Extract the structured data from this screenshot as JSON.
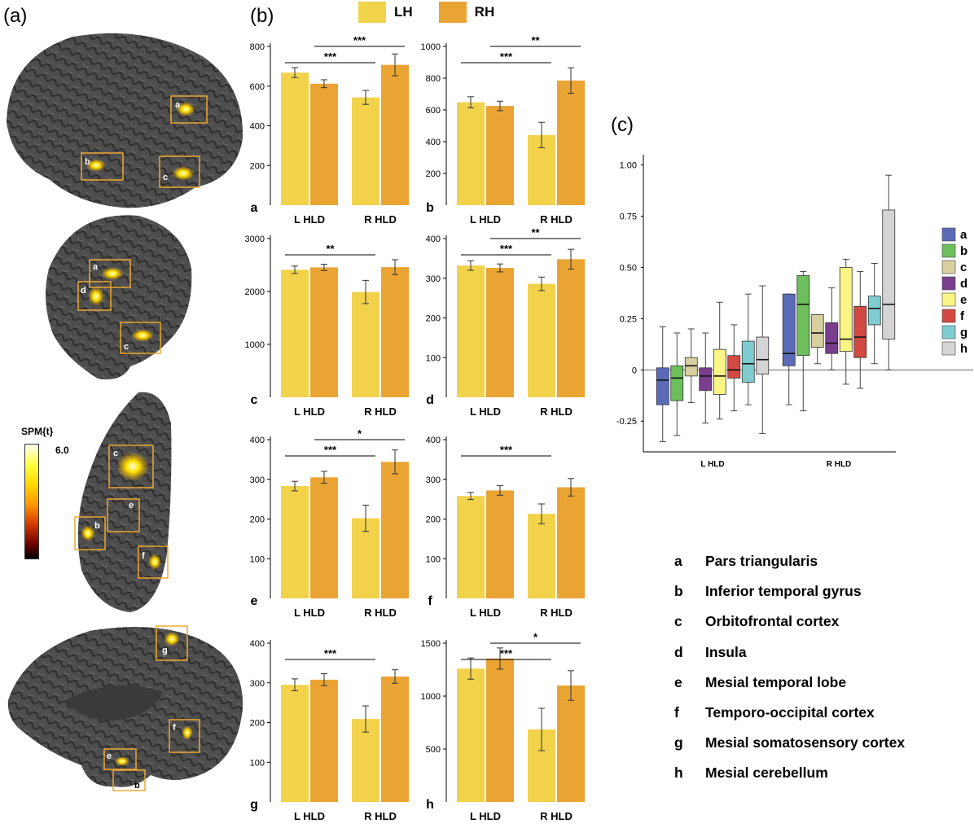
{
  "panel_labels": {
    "a": "(a)",
    "b": "(b)",
    "c": "(c)"
  },
  "colors": {
    "LH": "#f2d24a",
    "RH": "#e9a434",
    "brain_surface": "#4a4a4a",
    "roi_box": "#f0a830"
  },
  "legend": [
    {
      "label": "LH",
      "color": "#f2d24a"
    },
    {
      "label": "RH",
      "color": "#e9a434"
    }
  ],
  "colorbar": {
    "title": "SPM{t}",
    "max_label": "6.0"
  },
  "brain_views": [
    {
      "view": "lateral",
      "rois": [
        "a",
        "b",
        "c"
      ]
    },
    {
      "view": "lateral-tilted",
      "rois": [
        "a",
        "d",
        "c"
      ]
    },
    {
      "view": "ventral",
      "rois": [
        "c",
        "e",
        "b",
        "f"
      ]
    },
    {
      "view": "mesial",
      "rois": [
        "g",
        "f",
        "e",
        "b"
      ]
    }
  ],
  "chart_data": [
    {
      "panel": "a",
      "type": "bar",
      "categories": [
        "L HLD",
        "R HLD"
      ],
      "series": [
        {
          "name": "LH",
          "values": [
            668,
            543
          ],
          "errors": [
            25,
            35
          ]
        },
        {
          "name": "RH",
          "values": [
            612,
            707
          ],
          "errors": [
            20,
            55
          ]
        }
      ],
      "ylim": [
        0,
        800
      ],
      "yticks": [
        200,
        400,
        600,
        800
      ],
      "sig": [
        {
          "label": "***",
          "from": 0,
          "to": 1,
          "level": 1
        },
        {
          "label": "***",
          "from": 0.5,
          "to": 1.5,
          "level": 2
        }
      ]
    },
    {
      "panel": "b",
      "type": "bar",
      "categories": [
        "L HLD",
        "R HLD"
      ],
      "series": [
        {
          "name": "LH",
          "values": [
            648,
            442
          ],
          "errors": [
            35,
            80
          ]
        },
        {
          "name": "RH",
          "values": [
            625,
            785
          ],
          "errors": [
            30,
            80
          ]
        }
      ],
      "ylim": [
        0,
        1000
      ],
      "yticks": [
        200,
        400,
        600,
        800,
        1000
      ],
      "sig": [
        {
          "label": "***",
          "from": 0,
          "to": 1,
          "level": 1
        },
        {
          "label": "**",
          "from": 0.5,
          "to": 1.5,
          "level": 2
        }
      ]
    },
    {
      "panel": "c",
      "type": "bar",
      "categories": [
        "L HLD",
        "R HLD"
      ],
      "series": [
        {
          "name": "LH",
          "values": [
            2410,
            1990
          ],
          "errors": [
            70,
            220
          ]
        },
        {
          "name": "RH",
          "values": [
            2455,
            2460
          ],
          "errors": [
            60,
            140
          ]
        }
      ],
      "ylim": [
        0,
        3000
      ],
      "yticks": [
        1000,
        2000,
        3000
      ],
      "sig": [
        {
          "label": "**",
          "from": 0,
          "to": 1,
          "level": 1
        }
      ]
    },
    {
      "panel": "d",
      "type": "bar",
      "categories": [
        "L HLD",
        "R HLD"
      ],
      "series": [
        {
          "name": "LH",
          "values": [
            332,
            286
          ],
          "errors": [
            12,
            17
          ]
        },
        {
          "name": "RH",
          "values": [
            326,
            348
          ],
          "errors": [
            10,
            25
          ]
        }
      ],
      "ylim": [
        0,
        400
      ],
      "yticks": [
        100,
        200,
        300,
        400
      ],
      "sig": [
        {
          "label": "***",
          "from": 0,
          "to": 1,
          "level": 1
        },
        {
          "label": "**",
          "from": 0.5,
          "to": 1.5,
          "level": 2
        }
      ]
    },
    {
      "panel": "e",
      "type": "bar",
      "categories": [
        "L HLD",
        "R HLD"
      ],
      "series": [
        {
          "name": "LH",
          "values": [
            283,
            202
          ],
          "errors": [
            12,
            33
          ]
        },
        {
          "name": "RH",
          "values": [
            305,
            344
          ],
          "errors": [
            15,
            30
          ]
        }
      ],
      "ylim": [
        0,
        400
      ],
      "yticks": [
        100,
        200,
        300,
        400
      ],
      "sig": [
        {
          "label": "***",
          "from": 0,
          "to": 1,
          "level": 1
        },
        {
          "label": "*",
          "from": 0.5,
          "to": 1.5,
          "level": 2
        }
      ]
    },
    {
      "panel": "f",
      "type": "bar",
      "categories": [
        "L HLD",
        "R HLD"
      ],
      "series": [
        {
          "name": "LH",
          "values": [
            258,
            213
          ],
          "errors": [
            9,
            25
          ]
        },
        {
          "name": "RH",
          "values": [
            272,
            280
          ],
          "errors": [
            12,
            22
          ]
        }
      ],
      "ylim": [
        0,
        400
      ],
      "yticks": [
        100,
        200,
        300,
        400
      ],
      "sig": [
        {
          "label": "***",
          "from": 0,
          "to": 1,
          "level": 1
        }
      ]
    },
    {
      "panel": "g",
      "type": "bar",
      "categories": [
        "L HLD",
        "R HLD"
      ],
      "series": [
        {
          "name": "LH",
          "values": [
            295,
            209
          ],
          "errors": [
            15,
            33
          ]
        },
        {
          "name": "RH",
          "values": [
            308,
            316
          ],
          "errors": [
            15,
            17
          ]
        }
      ],
      "ylim": [
        0,
        400
      ],
      "yticks": [
        100,
        200,
        300,
        400
      ],
      "sig": [
        {
          "label": "***",
          "from": 0,
          "to": 1,
          "level": 1
        }
      ]
    },
    {
      "panel": "h",
      "type": "bar",
      "categories": [
        "L HLD",
        "R HLD"
      ],
      "series": [
        {
          "name": "LH",
          "values": [
            1260,
            685
          ],
          "errors": [
            100,
            200
          ]
        },
        {
          "name": "RH",
          "values": [
            1355,
            1100
          ],
          "errors": [
            100,
            140
          ]
        }
      ],
      "ylim": [
        0,
        1500
      ],
      "yticks": [
        500,
        1000,
        1500
      ],
      "sig": [
        {
          "label": "***",
          "from": 0,
          "to": 1,
          "level": 1
        },
        {
          "label": "*",
          "from": 0.5,
          "to": 1.5,
          "level": 2
        }
      ]
    },
    {
      "panel": "c-box",
      "type": "box",
      "groups": [
        "L HLD",
        "R HLD"
      ],
      "ylim": [
        -0.4,
        1.05
      ],
      "yticks": [
        -0.25,
        0,
        0.25,
        0.5,
        0.75,
        1.0
      ],
      "ytick_labels": [
        "-0.25",
        "0",
        "0.25",
        "0.50",
        "0.75",
        "1.00"
      ],
      "series": [
        {
          "name": "a",
          "color": "#5b6bb8",
          "boxes": [
            {
              "min": -0.35,
              "q1": -0.17,
              "med": -0.05,
              "q3": 0.01,
              "max": 0.21
            },
            {
              "min": -0.17,
              "q1": 0.02,
              "med": 0.08,
              "q3": 0.37,
              "max": 0.37
            }
          ]
        },
        {
          "name": "b",
          "color": "#6cbf5a",
          "boxes": [
            {
              "min": -0.32,
              "q1": -0.15,
              "med": -0.04,
              "q3": 0.02,
              "max": 0.18
            },
            {
              "min": -0.2,
              "q1": 0.07,
              "med": 0.32,
              "q3": 0.46,
              "max": 0.48
            }
          ]
        },
        {
          "name": "c",
          "color": "#d8cfa0",
          "boxes": [
            {
              "min": -0.16,
              "q1": -0.03,
              "med": 0.02,
              "q3": 0.06,
              "max": 0.2
            },
            {
              "min": 0.03,
              "q1": 0.11,
              "med": 0.18,
              "q3": 0.27,
              "max": 0.27
            }
          ]
        },
        {
          "name": "d",
          "color": "#7a3e8e",
          "boxes": [
            {
              "min": -0.26,
              "q1": -0.1,
              "med": -0.03,
              "q3": 0.01,
              "max": 0.18
            },
            {
              "min": 0.0,
              "q1": 0.08,
              "med": 0.13,
              "q3": 0.23,
              "max": 0.4
            }
          ]
        },
        {
          "name": "e",
          "color": "#fbf586",
          "boxes": [
            {
              "min": -0.24,
              "q1": -0.12,
              "med": -0.03,
              "q3": 0.1,
              "max": 0.33
            },
            {
              "min": -0.07,
              "q1": 0.09,
              "med": 0.15,
              "q3": 0.5,
              "max": 0.54
            }
          ]
        },
        {
          "name": "f",
          "color": "#d24a42",
          "boxes": [
            {
              "min": -0.2,
              "q1": -0.04,
              "med": 0.0,
              "q3": 0.07,
              "max": 0.22
            },
            {
              "min": -0.09,
              "q1": 0.06,
              "med": 0.16,
              "q3": 0.31,
              "max": 0.48
            }
          ]
        },
        {
          "name": "g",
          "color": "#7fcdd0",
          "boxes": [
            {
              "min": -0.17,
              "q1": -0.06,
              "med": 0.03,
              "q3": 0.14,
              "max": 0.37
            },
            {
              "min": 0.03,
              "q1": 0.22,
              "med": 0.3,
              "q3": 0.36,
              "max": 0.52
            }
          ]
        },
        {
          "name": "h",
          "color": "#d4d4d4",
          "boxes": [
            {
              "min": -0.31,
              "q1": -0.02,
              "med": 0.05,
              "q3": 0.16,
              "max": 0.41
            },
            {
              "min": 0.0,
              "q1": 0.15,
              "med": 0.32,
              "q3": 0.78,
              "max": 0.95
            }
          ]
        }
      ]
    }
  ],
  "regions": [
    {
      "key": "a",
      "name": "Pars triangularis"
    },
    {
      "key": "b",
      "name": "Inferior temporal gyrus"
    },
    {
      "key": "c",
      "name": "Orbitofrontal cortex"
    },
    {
      "key": "d",
      "name": "Insula"
    },
    {
      "key": "e",
      "name": "Mesial temporal lobe"
    },
    {
      "key": "f",
      "name": "Temporo-occipital cortex"
    },
    {
      "key": "g",
      "name": "Mesial somatosensory cortex"
    },
    {
      "key": "h",
      "name": "Mesial cerebellum"
    }
  ]
}
